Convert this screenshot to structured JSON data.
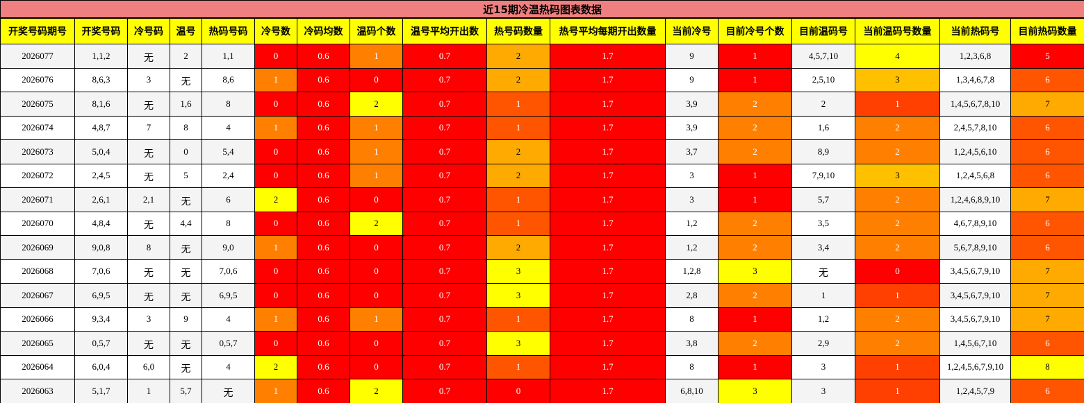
{
  "title": "近15期冷温热码图表数据",
  "headers": [
    "开奖号码期号",
    "开奖号码",
    "冷号码",
    "温号",
    "热码号码",
    "冷号数",
    "冷码均数",
    "温码个数",
    "温号平均开出数",
    "热号码数量",
    "热号平均每期开出数量",
    "当前冷号",
    "目前冷号个数",
    "目前温码号",
    "当前温码号数量",
    "当前热码号",
    "目前热码数量"
  ],
  "palette": {
    "red": "#ff0000",
    "orange": "#ff8000",
    "yellow": "#ffff00",
    "amber": "#ffaa00",
    "gold": "#ffc000",
    "redorange": "#ff4000",
    "darkorange": "#ff5500"
  },
  "color_rules": {
    "5": {
      "0": "red",
      "1": "orange",
      "2": "yellow"
    },
    "6": {
      "*": "red"
    },
    "7": {
      "0": "red",
      "1": "orange",
      "2": "yellow"
    },
    "8": {
      "*": "red"
    },
    "9": {
      "0": "red",
      "1": "darkorange",
      "2": "amber",
      "3": "yellow"
    },
    "10": {
      "*": "red"
    },
    "12": {
      "1": "red",
      "2": "orange",
      "3": "yellow"
    },
    "14": {
      "0": "red",
      "1": "redorange",
      "2": "orange",
      "3": "gold",
      "4": "yellow"
    },
    "16": {
      "5": "red",
      "6": "darkorange",
      "7": "amber",
      "8": "yellow"
    }
  },
  "rows": [
    [
      "2026077",
      "1,1,2",
      "无",
      "2",
      "1,1",
      "0",
      "0.6",
      "1",
      "0.7",
      "2",
      "1.7",
      "9",
      "1",
      "4,5,7,10",
      "4",
      "1,2,3,6,8",
      "5"
    ],
    [
      "2026076",
      "8,6,3",
      "3",
      "无",
      "8,6",
      "1",
      "0.6",
      "0",
      "0.7",
      "2",
      "1.7",
      "9",
      "1",
      "2,5,10",
      "3",
      "1,3,4,6,7,8",
      "6"
    ],
    [
      "2026075",
      "8,1,6",
      "无",
      "1,6",
      "8",
      "0",
      "0.6",
      "2",
      "0.7",
      "1",
      "1.7",
      "3,9",
      "2",
      "2",
      "1",
      "1,4,5,6,7,8,10",
      "7"
    ],
    [
      "2026074",
      "4,8,7",
      "7",
      "8",
      "4",
      "1",
      "0.6",
      "1",
      "0.7",
      "1",
      "1.7",
      "3,9",
      "2",
      "1,6",
      "2",
      "2,4,5,7,8,10",
      "6"
    ],
    [
      "2026073",
      "5,0,4",
      "无",
      "0",
      "5,4",
      "0",
      "0.6",
      "1",
      "0.7",
      "2",
      "1.7",
      "3,7",
      "2",
      "8,9",
      "2",
      "1,2,4,5,6,10",
      "6"
    ],
    [
      "2026072",
      "2,4,5",
      "无",
      "5",
      "2,4",
      "0",
      "0.6",
      "1",
      "0.7",
      "2",
      "1.7",
      "3",
      "1",
      "7,9,10",
      "3",
      "1,2,4,5,6,8",
      "6"
    ],
    [
      "2026071",
      "2,6,1",
      "2,1",
      "无",
      "6",
      "2",
      "0.6",
      "0",
      "0.7",
      "1",
      "1.7",
      "3",
      "1",
      "5,7",
      "2",
      "1,2,4,6,8,9,10",
      "7"
    ],
    [
      "2026070",
      "4,8,4",
      "无",
      "4,4",
      "8",
      "0",
      "0.6",
      "2",
      "0.7",
      "1",
      "1.7",
      "1,2",
      "2",
      "3,5",
      "2",
      "4,6,7,8,9,10",
      "6"
    ],
    [
      "2026069",
      "9,0,8",
      "8",
      "无",
      "9,0",
      "1",
      "0.6",
      "0",
      "0.7",
      "2",
      "1.7",
      "1,2",
      "2",
      "3,4",
      "2",
      "5,6,7,8,9,10",
      "6"
    ],
    [
      "2026068",
      "7,0,6",
      "无",
      "无",
      "7,0,6",
      "0",
      "0.6",
      "0",
      "0.7",
      "3",
      "1.7",
      "1,2,8",
      "3",
      "无",
      "0",
      "3,4,5,6,7,9,10",
      "7"
    ],
    [
      "2026067",
      "6,9,5",
      "无",
      "无",
      "6,9,5",
      "0",
      "0.6",
      "0",
      "0.7",
      "3",
      "1.7",
      "2,8",
      "2",
      "1",
      "1",
      "3,4,5,6,7,9,10",
      "7"
    ],
    [
      "2026066",
      "9,3,4",
      "3",
      "9",
      "4",
      "1",
      "0.6",
      "1",
      "0.7",
      "1",
      "1.7",
      "8",
      "1",
      "1,2",
      "2",
      "3,4,5,6,7,9,10",
      "7"
    ],
    [
      "2026065",
      "0,5,7",
      "无",
      "无",
      "0,5,7",
      "0",
      "0.6",
      "0",
      "0.7",
      "3",
      "1.7",
      "3,8",
      "2",
      "2,9",
      "2",
      "1,4,5,6,7,10",
      "6"
    ],
    [
      "2026064",
      "6,0,4",
      "6,0",
      "无",
      "4",
      "2",
      "0.6",
      "0",
      "0.7",
      "1",
      "1.7",
      "8",
      "1",
      "3",
      "1",
      "1,2,4,5,6,7,9,10",
      "8"
    ],
    [
      "2026063",
      "5,1,7",
      "1",
      "5,7",
      "无",
      "1",
      "0.6",
      "2",
      "0.7",
      "0",
      "1.7",
      "6,8,10",
      "3",
      "3",
      "1",
      "1,2,4,5,7,9",
      "6"
    ]
  ]
}
